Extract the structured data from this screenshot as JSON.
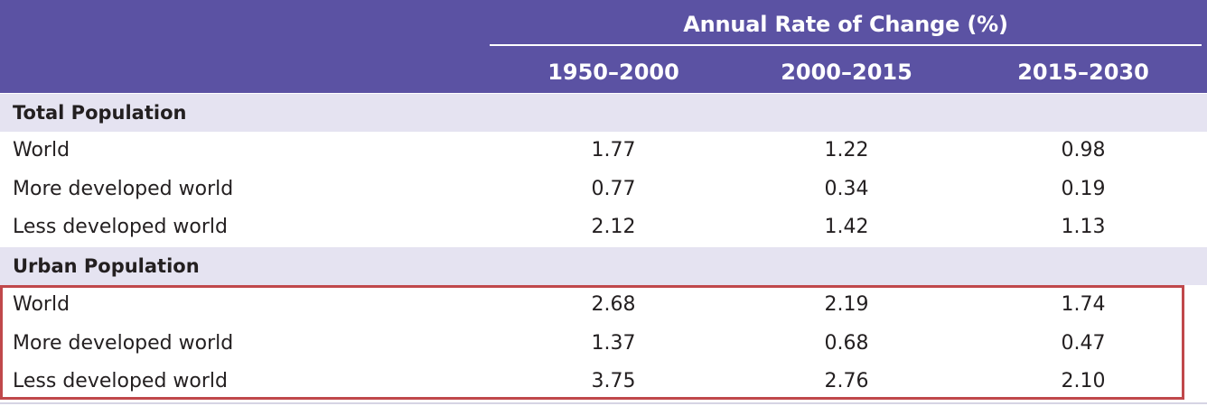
{
  "table": {
    "super_header": "Annual Rate of Change (%)",
    "columns": [
      "1950–2000",
      "2000–2015",
      "2015–2030"
    ],
    "sections": [
      {
        "label": "Total Population",
        "rows": [
          {
            "label": "World",
            "values": [
              "1.77",
              "1.22",
              "0.98"
            ]
          },
          {
            "label": "More developed world",
            "values": [
              "0.77",
              "0.34",
              "0.19"
            ]
          },
          {
            "label": "Less developed world",
            "values": [
              "2.12",
              "1.42",
              "1.13"
            ]
          }
        ]
      },
      {
        "label": "Urban Population",
        "rows": [
          {
            "label": "World",
            "values": [
              "2.68",
              "2.19",
              "1.74"
            ]
          },
          {
            "label": "More developed world",
            "values": [
              "1.37",
              "0.68",
              "0.47"
            ]
          },
          {
            "label": "Less developed world",
            "values": [
              "3.75",
              "2.76",
              "2.10"
            ]
          }
        ]
      }
    ]
  },
  "colors": {
    "header_bg": "#5b52a3",
    "section_bg": "#e5e3f1",
    "highlight_border": "#c0484b",
    "text": "#231f20"
  }
}
